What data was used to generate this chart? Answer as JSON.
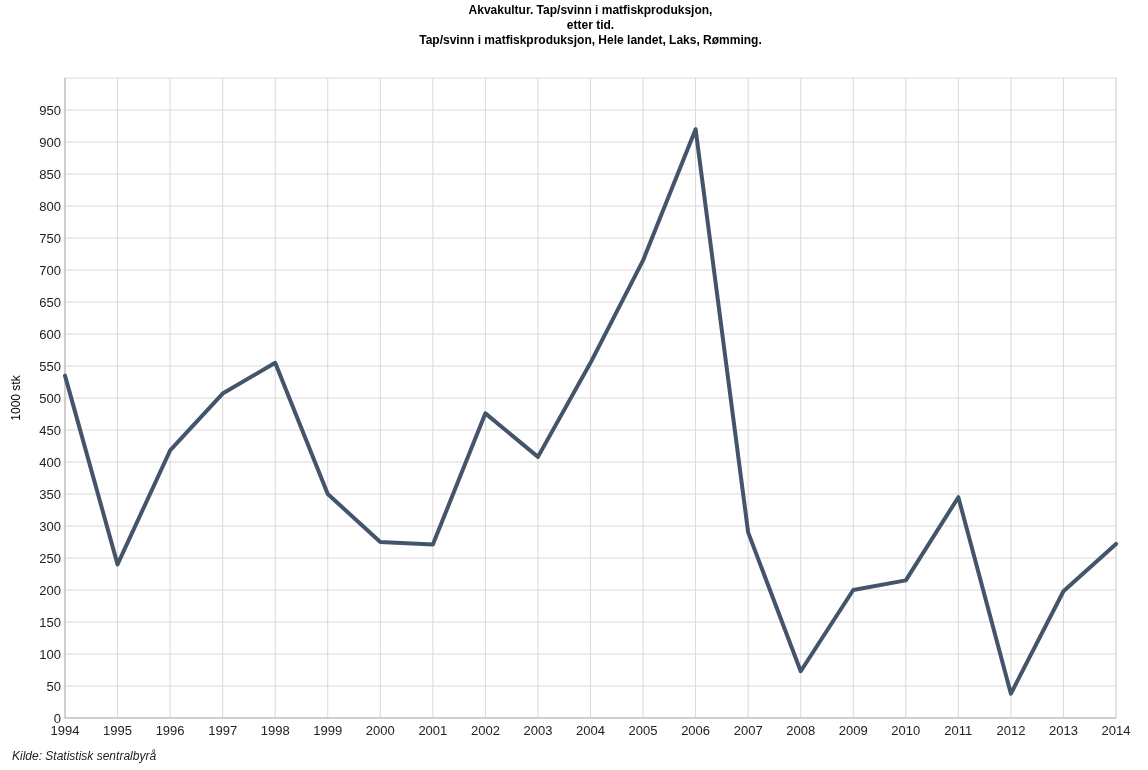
{
  "chart_data": {
    "type": "line",
    "title": "Akvakultur. Tap/svinn i matfiskproduksjon,\netter tid.\nTap/svinn i matfiskproduksjon, Hele landet, Laks, Rømming.",
    "ylabel": "1000 stk",
    "annotations": [
      "Kilde: Statistisk sentralbyrå"
    ],
    "x": [
      1994,
      1995,
      1996,
      1997,
      1998,
      1999,
      2000,
      2001,
      2002,
      2003,
      2004,
      2005,
      2006,
      2007,
      2008,
      2009,
      2010,
      2011,
      2012,
      2013,
      2014
    ],
    "series": [
      {
        "color": "#44546a",
        "values": [
          535,
          240,
          418,
          507,
          555,
          350,
          275,
          271,
          476,
          408,
          555,
          715,
          920,
          290,
          73,
          200,
          215,
          345,
          38,
          198,
          272
        ]
      }
    ],
    "xlim": [
      1994,
      2014
    ],
    "xticks": [
      1994,
      1995,
      1996,
      1997,
      1998,
      1999,
      2000,
      2001,
      2002,
      2003,
      2004,
      2005,
      2006,
      2007,
      2008,
      2009,
      2010,
      2011,
      2012,
      2013,
      2014
    ],
    "ylim": [
      0,
      1000
    ],
    "yticks": [
      0,
      50,
      100,
      150,
      200,
      250,
      300,
      350,
      400,
      450,
      500,
      550,
      600,
      650,
      700,
      750,
      800,
      850,
      900,
      950
    ],
    "grid": true,
    "marker": "none",
    "line_style": "solid"
  }
}
